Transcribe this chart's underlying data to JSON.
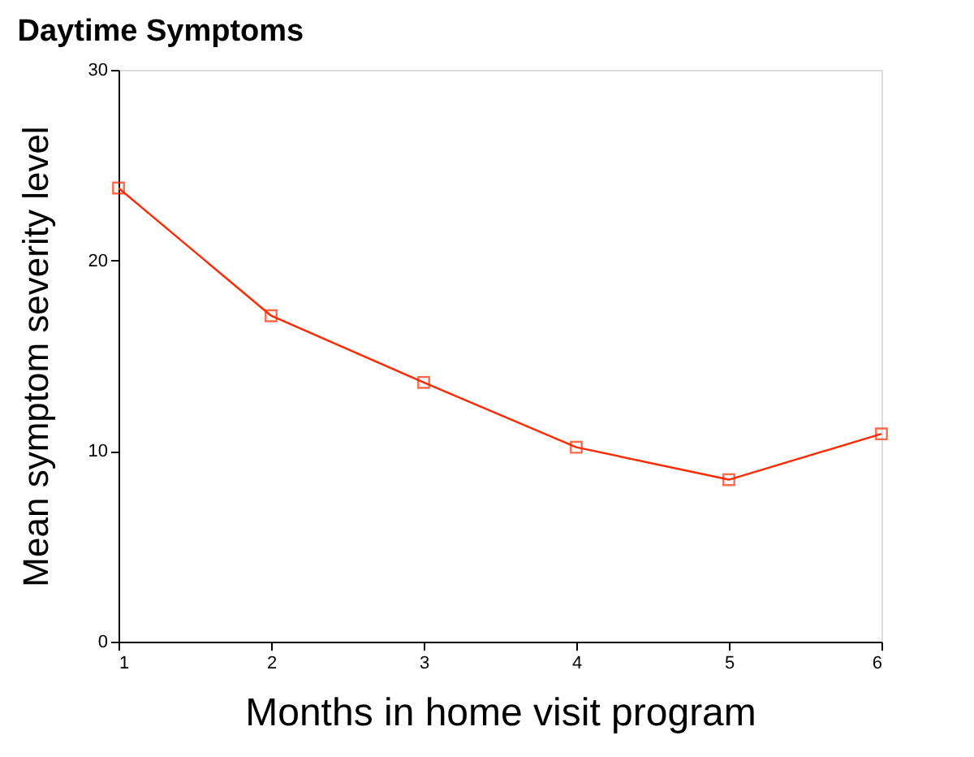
{
  "chart_data": {
    "type": "line",
    "title": "Daytime Symptoms",
    "xlabel": "Months in home visit program",
    "ylabel": "Mean symptom severity level",
    "x": [
      1,
      2,
      3,
      4,
      5,
      6
    ],
    "series": [
      {
        "color": "#ff2a00",
        "values": [
          23.8,
          17.1,
          13.6,
          10.2,
          8.5,
          10.9
        ]
      }
    ],
    "xlim": [
      1,
      6
    ],
    "xticks": [
      1,
      2,
      3,
      4,
      5,
      6
    ],
    "ylim": [
      0,
      30
    ],
    "yticks": [
      0,
      10,
      20,
      30
    ],
    "marker": "square",
    "line_style": "solid"
  }
}
